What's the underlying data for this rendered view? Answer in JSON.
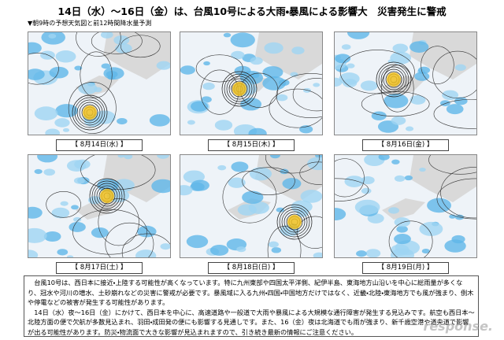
{
  "header": {
    "title": "14日（水）～16日（金）は、台風10号による大雨・暴風による影響大　災害発生に警戒",
    "subtitle": "▼朝9時の予想天気図と前12時間降水量予測"
  },
  "maps": [
    {
      "caption": "【 8月14日(水) 】"
    },
    {
      "caption": "【 8月15日(木) 】"
    },
    {
      "caption": "【 8月16日(金) 】"
    },
    {
      "caption": "【 8月17日(土) 】"
    },
    {
      "caption": "【 8月18日(日) 】"
    },
    {
      "caption": "【 8月19日(月) 】"
    }
  ],
  "body": {
    "paragraphs": [
      "台風10号は、西日本に接近・上陸する可能性が高くなっています。特に九州東部や四国太平洋側、紀伊半島、東海地方山沿いを中心に総雨量が多くなり、冠水や河川の増水、土砂崩れなどの災害に警戒が必要です。暴風域に入る九州・四国・中国地方だけではなく、近畿・北陸・東海地方でも風が強まり、倒木や停電などの被害が発生する可能性があります。",
      "14日（水）夜～16日（金）にかけて、西日本を中心に、高速道路や一般道で大雨や暴風による大規模な通行障害が発生する見込みです。航空も西日本～北陸方面の便で欠航が多数見込まれ、羽田・成田発の便にも影響する見通しです。また、16（金）夜は北海道でも雨が強まり、新千歳空港や道央道で影響が出る可能性があります。防災・物流面で大きな影響が見込まれますので、引き続き最新の情報にご注意ください。"
    ]
  },
  "watermark": "response."
}
